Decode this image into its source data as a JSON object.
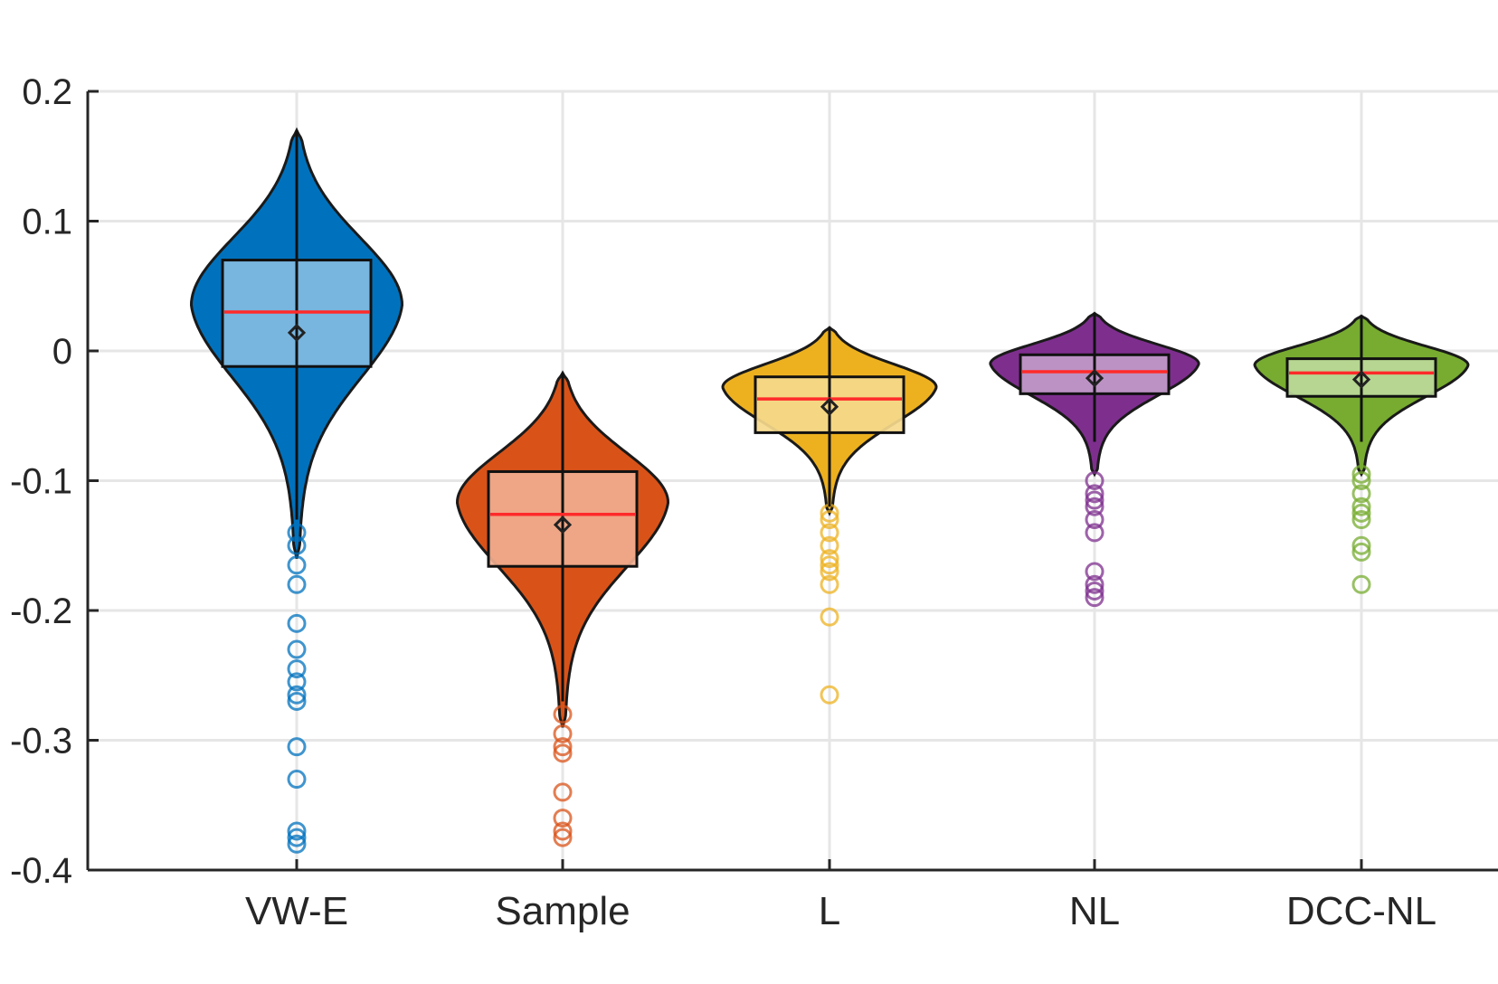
{
  "chart_data": {
    "type": "violin",
    "ylim": [
      -0.4,
      0.2
    ],
    "yticks": [
      {
        "value": 0.2,
        "label": "0.2"
      },
      {
        "value": 0.1,
        "label": "0.1"
      },
      {
        "value": 0,
        "label": "0"
      },
      {
        "value": -0.1,
        "label": "-0.1"
      },
      {
        "value": -0.2,
        "label": "-0.2"
      },
      {
        "value": -0.3,
        "label": "-0.3"
      },
      {
        "value": -0.4,
        "label": "-0.4"
      }
    ],
    "grid": true,
    "series": [
      {
        "category": "VW-E",
        "color": "#0072BD",
        "box_color": "#82BBE2",
        "whisker_low": -0.13,
        "whisker_high": 0.17,
        "q1": -0.012,
        "median": 0.03,
        "q3": 0.07,
        "mean": 0.014,
        "kde_min": -0.16,
        "kde_max": 0.17,
        "kde_peak": 0.035,
        "kde_halfwidth": 0.08,
        "outliers": [
          -0.14,
          -0.15,
          -0.165,
          -0.18,
          -0.21,
          -0.23,
          -0.245,
          -0.255,
          -0.265,
          -0.27,
          -0.305,
          -0.33,
          -0.37,
          -0.375,
          -0.38
        ]
      },
      {
        "category": "Sample",
        "color": "#D95319",
        "box_color": "#F0AE8F",
        "whisker_low": -0.27,
        "whisker_high": -0.017,
        "q1": -0.166,
        "median": -0.126,
        "q3": -0.093,
        "mean": -0.134,
        "kde_min": -0.29,
        "kde_max": -0.017,
        "kde_peak": -0.117,
        "kde_halfwidth": 0.08,
        "outliers": [
          -0.28,
          -0.295,
          -0.305,
          -0.31,
          -0.34,
          -0.36,
          -0.37,
          -0.375
        ]
      },
      {
        "category": "L",
        "color": "#EDB120",
        "box_color": "#F5D98C",
        "whisker_low": -0.12,
        "whisker_high": 0.018,
        "q1": -0.063,
        "median": -0.037,
        "q3": -0.02,
        "mean": -0.043,
        "kde_min": -0.125,
        "kde_max": 0.018,
        "kde_peak": -0.028,
        "kde_halfwidth": 0.081,
        "outliers": [
          -0.125,
          -0.13,
          -0.14,
          -0.15,
          -0.16,
          -0.165,
          -0.17,
          -0.18,
          -0.205,
          -0.265
        ]
      },
      {
        "category": "NL",
        "color": "#7E2F8E",
        "box_color": "#C19BC9",
        "whisker_low": -0.07,
        "whisker_high": 0.029,
        "q1": -0.033,
        "median": -0.016,
        "q3": -0.003,
        "mean": -0.021,
        "kde_min": -0.095,
        "kde_max": 0.029,
        "kde_peak": -0.01,
        "kde_halfwidth": 0.079,
        "outliers": [
          -0.1,
          -0.11,
          -0.115,
          -0.12,
          -0.13,
          -0.14,
          -0.17,
          -0.18,
          -0.185,
          -0.19
        ]
      },
      {
        "category": "DCC-NL",
        "color": "#77AC30",
        "box_color": "#BCD99A",
        "whisker_low": -0.07,
        "whisker_high": 0.027,
        "q1": -0.035,
        "median": -0.017,
        "q3": -0.006,
        "mean": -0.022,
        "kde_min": -0.095,
        "kde_max": 0.027,
        "kde_peak": -0.011,
        "kde_halfwidth": 0.081,
        "outliers": [
          -0.095,
          -0.1,
          -0.11,
          -0.12,
          -0.125,
          -0.13,
          -0.15,
          -0.155,
          -0.18
        ]
      }
    ]
  }
}
